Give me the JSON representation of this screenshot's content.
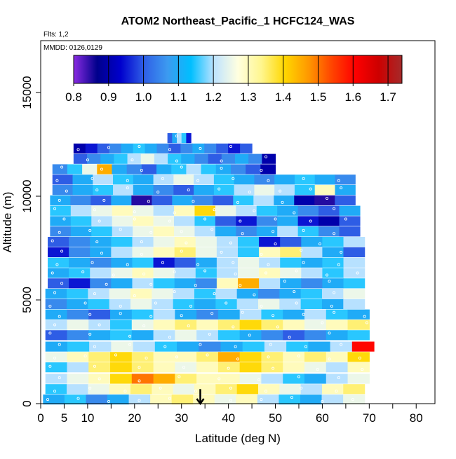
{
  "chart_data": {
    "type": "heatmap",
    "title": "ATOM2 Northeast_Pacific_1 HCFC124_WAS",
    "flights_label": "Flts: 1,2",
    "dates_label": "MMDD: 0126,0129",
    "xlabel": "Latitude (deg N)",
    "ylabel": "Altitude (m)",
    "xlim": [
      0,
      84
    ],
    "ylim": [
      0,
      17500
    ],
    "x_ticks": [
      0,
      5,
      10,
      20,
      30,
      40,
      50,
      60,
      70,
      80
    ],
    "x_minor_ticks": [
      15,
      25,
      35,
      45,
      55,
      65,
      75
    ],
    "y_ticks": [
      0,
      5000,
      10000,
      15000
    ],
    "colorbar": {
      "min": 0.8,
      "max": 1.74,
      "ticks": [
        "0.8",
        "0.9",
        "1.0",
        "1.1",
        "1.2",
        "1.3",
        "1.4",
        "1.5",
        "1.6",
        "1.7"
      ],
      "tick_values": [
        0.8,
        0.9,
        1.0,
        1.1,
        1.2,
        1.3,
        1.4,
        1.5,
        1.6,
        1.7
      ],
      "colors": [
        "#8a2be2",
        "#00008b",
        "#0000cd",
        "#2f5fe6",
        "#3c9af0",
        "#00bfff",
        "#bfe3ff",
        "#ffffe0",
        "#fff68f",
        "#ffd700",
        "#ff9900",
        "#ff4500",
        "#ff0000",
        "#cd0000",
        "#a52a2a"
      ]
    },
    "curtain_layers": [
      {
        "alt": 200,
        "lat_min": 0.5,
        "lat_max": 69,
        "values": [
          1.1,
          1.15,
          1.05,
          1.1,
          1.2,
          1.3,
          1.35,
          1.3,
          1.25,
          1.3,
          1.2,
          1.15,
          1.1,
          1.2,
          1.25
        ]
      },
      {
        "alt": 700,
        "lat_min": 1,
        "lat_max": 69,
        "values": [
          1.15,
          1.2,
          1.25,
          1.3,
          1.35,
          1.3,
          1.25,
          1.3,
          1.35,
          1.4,
          1.3,
          1.25,
          1.2,
          1.3,
          1.35
        ]
      },
      {
        "alt": 1200,
        "lat_min": 1,
        "lat_max": 70,
        "values": [
          1.2,
          1.25,
          1.3,
          1.4,
          1.5,
          1.45,
          1.35,
          1.3,
          1.3,
          1.25,
          1.2,
          1.15,
          1.1,
          1.2,
          1.25
        ]
      },
      {
        "alt": 1750,
        "lat_min": 1,
        "lat_max": 70,
        "values": [
          1.15,
          1.2,
          1.35,
          1.4,
          1.35,
          1.3,
          1.25,
          1.3,
          1.35,
          1.4,
          1.35,
          1.3,
          1.25,
          1.2,
          1.3
        ]
      },
      {
        "alt": 2250,
        "lat_min": 1,
        "lat_max": 70,
        "values": [
          1.25,
          1.3,
          1.35,
          1.4,
          1.35,
          1.3,
          1.3,
          1.35,
          1.45,
          1.4,
          1.35,
          1.3,
          1.35,
          1.3,
          1.4
        ]
      },
      {
        "alt": 2750,
        "lat_min": 1,
        "lat_max": 71,
        "values": [
          1.1,
          1.15,
          1.2,
          1.25,
          1.2,
          1.15,
          1.1,
          1.05,
          1.1,
          1.15,
          1.2,
          1.15,
          1.1,
          1.2,
          1.6
        ]
      },
      {
        "alt": 3300,
        "lat_min": 1,
        "lat_max": 70,
        "values": [
          1.0,
          1.05,
          1.1,
          1.15,
          1.1,
          1.2,
          1.25,
          1.2,
          1.15,
          1.1,
          1.05,
          1.0,
          1.05,
          1.1,
          1.15
        ]
      },
      {
        "alt": 3800,
        "lat_min": 1,
        "lat_max": 70,
        "values": [
          1.2,
          1.25,
          1.2,
          1.15,
          1.25,
          1.3,
          1.35,
          1.3,
          1.35,
          1.4,
          1.35,
          1.3,
          1.25,
          1.3,
          1.35
        ]
      },
      {
        "alt": 4300,
        "lat_min": 1,
        "lat_max": 70,
        "values": [
          1.1,
          1.05,
          1.0,
          1.1,
          1.15,
          1.2,
          1.1,
          1.05,
          1.1,
          1.2,
          1.15,
          1.1,
          1.2,
          1.15,
          1.1
        ]
      },
      {
        "alt": 4800,
        "lat_min": 1,
        "lat_max": 69,
        "values": [
          1.05,
          1.1,
          1.15,
          1.2,
          1.25,
          1.2,
          1.15,
          1.1,
          1.15,
          1.2,
          1.25,
          1.2,
          1.15,
          1.1,
          1.2
        ]
      },
      {
        "alt": 5300,
        "lat_min": 1,
        "lat_max": 69,
        "values": [
          1.1,
          1.15,
          1.2,
          1.25,
          1.3,
          1.25,
          1.2,
          1.15,
          1.2,
          1.1,
          1.05,
          1.1,
          1.15,
          1.2,
          1.25
        ]
      },
      {
        "alt": 5800,
        "lat_min": 1.5,
        "lat_max": 69,
        "values": [
          1.0,
          0.95,
          1.05,
          1.1,
          1.2,
          1.15,
          1.1,
          1.05,
          1.3,
          1.45,
          1.2,
          1.1,
          1.05,
          1.1,
          1.15
        ]
      },
      {
        "alt": 6300,
        "lat_min": 1.5,
        "lat_max": 69,
        "values": [
          1.1,
          1.15,
          1.2,
          1.25,
          1.3,
          1.25,
          1.2,
          1.15,
          1.2,
          1.25,
          1.3,
          1.25,
          1.2,
          1.15,
          1.2
        ]
      },
      {
        "alt": 6800,
        "lat_min": 1.5,
        "lat_max": 69,
        "values": [
          1.15,
          1.1,
          1.05,
          1.1,
          1.15,
          0.95,
          1.0,
          1.1,
          1.2,
          1.25,
          1.2,
          1.15,
          1.1,
          1.15,
          1.2
        ]
      },
      {
        "alt": 7300,
        "lat_min": 1.5,
        "lat_max": 69,
        "values": [
          0.95,
          1.05,
          1.1,
          1.2,
          1.25,
          1.3,
          1.35,
          1.25,
          1.2,
          1.15,
          1.3,
          1.35,
          1.2,
          1.1,
          1.0
        ]
      },
      {
        "alt": 7800,
        "lat_min": 1.5,
        "lat_max": 69,
        "values": [
          1.0,
          1.05,
          1.1,
          1.15,
          1.2,
          1.25,
          1.3,
          1.25,
          1.2,
          1.15,
          0.95,
          1.0,
          1.1,
          1.15,
          1.2
        ]
      },
      {
        "alt": 8300,
        "lat_min": 2,
        "lat_max": 68,
        "values": [
          1.05,
          1.1,
          1.15,
          1.2,
          1.25,
          1.3,
          1.25,
          1.2,
          1.1,
          1.05,
          1.1,
          1.2,
          1.15,
          1.05,
          1.0
        ]
      },
      {
        "alt": 8800,
        "lat_min": 2,
        "lat_max": 68,
        "values": [
          1.1,
          1.15,
          1.2,
          1.25,
          1.3,
          1.25,
          1.2,
          1.15,
          1.0,
          0.95,
          1.05,
          1.1,
          0.95,
          0.9,
          1.0
        ]
      },
      {
        "alt": 9300,
        "lat_min": 2,
        "lat_max": 68,
        "values": [
          1.15,
          1.2,
          1.25,
          1.3,
          1.25,
          1.2,
          1.3,
          1.4,
          1.25,
          1.2,
          1.15,
          1.1,
          1.05,
          1.0,
          1.1
        ]
      },
      {
        "alt": 9800,
        "lat_min": 2,
        "lat_max": 67,
        "values": [
          1.1,
          1.05,
          1.0,
          1.1,
          0.85,
          1.0,
          1.1,
          1.05,
          1.0,
          1.15,
          1.2,
          1.1,
          0.9,
          0.85,
          1.0
        ]
      },
      {
        "alt": 10300,
        "lat_min": 2.5,
        "lat_max": 67,
        "values": [
          1.05,
          1.1,
          1.15,
          1.2,
          1.1,
          1.05,
          1.0,
          1.1,
          1.15,
          1.2,
          1.25,
          1.2,
          1.15,
          1.3,
          1.1
        ]
      },
      {
        "alt": 10800,
        "lat_min": 2.5,
        "lat_max": 67,
        "values": [
          1.0,
          1.1,
          1.2,
          1.15,
          1.1,
          1.2,
          1.25,
          1.2,
          1.15,
          1.1,
          1.05,
          1.1,
          1.15,
          1.1,
          1.05
        ]
      },
      {
        "alt": 11300,
        "lat_min": 2.5,
        "lat_max": 50,
        "values": [
          1.05,
          1.15,
          1.25,
          1.45,
          1.1,
          1.05,
          1.0,
          1.1,
          1.15,
          1.2,
          1.15,
          1.1,
          1.05,
          1.0,
          0.9
        ]
      },
      {
        "alt": 11800,
        "lat_min": 7,
        "lat_max": 50,
        "values": [
          1.0,
          1.05,
          1.1,
          1.15,
          1.2,
          1.25,
          1.2,
          1.15,
          1.1,
          1.05,
          1.0,
          1.05,
          1.1,
          1.05,
          0.9
        ]
      },
      {
        "alt": 12300,
        "lat_min": 7,
        "lat_max": 45,
        "values": [
          0.9,
          0.95,
          1.0,
          1.05,
          1.1,
          1.15,
          1.1,
          1.05,
          1.0,
          1.05,
          1.1,
          1.05,
          1.0,
          0.95,
          1.0
        ]
      },
      {
        "alt": 12800,
        "lat_min": 27,
        "lat_max": 32,
        "values": [
          1.0,
          1.1,
          1.2,
          1.15,
          0.95
        ]
      }
    ],
    "annotation": {
      "type": "arrow-down",
      "lat": 34,
      "alt_top": 700,
      "alt_bottom": 0
    }
  }
}
